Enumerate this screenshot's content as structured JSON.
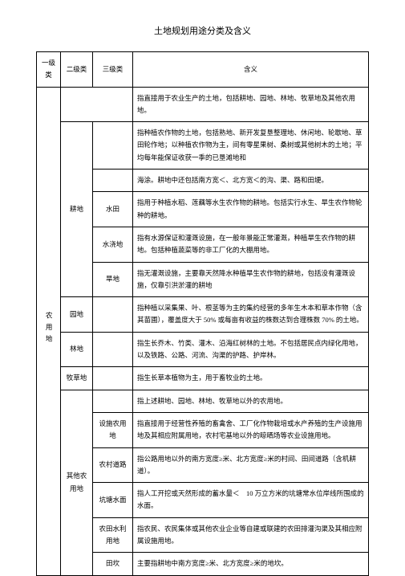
{
  "title": "土地规划用途分类及含义",
  "header": {
    "col1": "一级类",
    "col2": "二级类",
    "col3": "三级类",
    "col4": "含义"
  },
  "level1": "农用地",
  "rows": [
    {
      "level2": "",
      "level3": "",
      "content": "指直接用于农业生产的土地，包括耕地、园地、林地、牧草地及其他农用地。"
    },
    {
      "level2": "耕地",
      "level3": "",
      "content": "指种植农作物的土地，包括熟地、新开发复垦整理地、休闲地、轮歇地、草田轮作地；以种植农作物为主，间有零星果树、桑树或其他树木的土地；平均每年能保证收获一季的已垦滩地和"
    },
    {
      "level2": "",
      "level3": "",
      "content": "海涂。耕地中还包括南方宽＜、北方宽＜的沟、渠、路和田埂。"
    },
    {
      "level2": "",
      "level3": "水田",
      "content": "指用于种植水稻、莲藕等水生农作物的耕地。包括实行水生、旱生农作物轮种的耕地。"
    },
    {
      "level2": "",
      "level3": "水浇地",
      "content": "指有水源保证和灌溉设施，在一般年景能正常灌溉，种植旱生农作物的耕地。包括种植蔬菜等的非工厂化的大棚用地。"
    },
    {
      "level2": "",
      "level3": "旱地",
      "content": "指无灌溉设施，主要靠天然降水种植旱生农作物的耕地，包括没有灌溉设施，仅靠引洪淤灌的耕地"
    },
    {
      "level2": "园地",
      "level3": "",
      "content": "指种植以采集果、叶、根茎等为主的集约经营的多年生木本和草本作物（含其苗圃），覆盖度大于 50% 或每亩有收益的株数达到合理株数 70% 的土地。"
    },
    {
      "level2": "林地",
      "level3": "",
      "content": "指生长乔木、竹类、灌木、沿海红树林的土地。不包括居民点内绿化用地，以及铁路、公路、河流、沟渠的护路、护岸林。"
    },
    {
      "level2": "牧草地",
      "level3": "",
      "content": "指生长草本植物为主，用于畜牧业的土地。"
    },
    {
      "level2": "其他农用地",
      "level3": "",
      "content": "指上述耕地、园地、林地、牧草地以外的农用地。"
    },
    {
      "level2": "",
      "level3": "设施农用地",
      "content": "指直接用于经营性养殖的畜禽舍、工厂化作物栽培或水产养殖的生产设施用地及其相应附属用地，农村宅基地以外的晾晒场等农业设施用地。"
    },
    {
      "level2": "",
      "level3": "农村道路",
      "content": "指公路用地以外的南方宽度≥米、北方宽度≥米的村间、田间道路（含机耕道）。"
    },
    {
      "level2": "",
      "level3": "坑塘水面",
      "content": "指人工开挖或天然形成的蓄水量＜　10 万立方米的坑塘常水位岸线所围成的水面。"
    },
    {
      "level2": "",
      "level3": "农田水利用地",
      "content": "指农民、农民集体或其他农业企业等自建或联建的农田排灌沟渠及其相应附属设施用地。"
    },
    {
      "level2": "",
      "level3": "田坎",
      "content": "主要指耕地中南方宽度≥米、北方宽度≥米的地坎。"
    }
  ]
}
